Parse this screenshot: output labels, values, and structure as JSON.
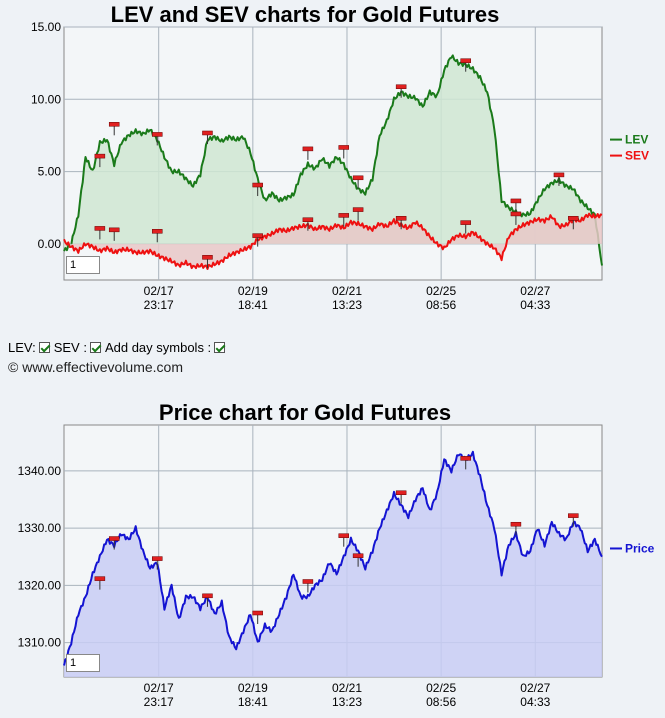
{
  "chart_data": [
    {
      "type": "line",
      "title": "LEV and SEV charts for Gold Futures",
      "ylim": [
        -2.5,
        15
      ],
      "yticks": [
        "15.00",
        "10.00",
        "5.00",
        "0.00"
      ],
      "ytick_values": [
        15,
        10,
        5,
        0
      ],
      "xticks": [
        {
          "date": "02/17",
          "time": "23:17"
        },
        {
          "date": "02/19",
          "time": "18:41"
        },
        {
          "date": "02/21",
          "time": "13:23"
        },
        {
          "date": "02/25",
          "time": "08:56"
        },
        {
          "date": "02/27",
          "time": "04:33"
        }
      ],
      "legend_position": "right",
      "grid": true,
      "series": [
        {
          "name": "LEV",
          "color": "#1a7a1a",
          "fill": "#cfe6d2",
          "points": [
            [
              0,
              -0.5
            ],
            [
              1,
              0
            ],
            [
              2,
              2
            ],
            [
              3,
              6
            ],
            [
              4,
              5
            ],
            [
              5,
              7
            ],
            [
              6,
              7.2
            ],
            [
              7,
              5.5
            ],
            [
              8,
              7
            ],
            [
              9,
              7.5
            ],
            [
              10,
              7.8
            ],
            [
              11,
              7.6
            ],
            [
              12,
              7.9
            ],
            [
              13,
              7.2
            ],
            [
              14,
              6
            ],
            [
              15,
              5
            ],
            [
              16,
              5
            ],
            [
              17,
              4.5
            ],
            [
              18,
              4
            ],
            [
              19,
              4.8
            ],
            [
              20,
              7.2
            ],
            [
              21,
              7.4
            ],
            [
              22,
              7.1
            ],
            [
              23,
              7.4
            ],
            [
              24,
              7.2
            ],
            [
              25,
              7.4
            ],
            [
              26,
              6.3
            ],
            [
              27,
              4.5
            ],
            [
              28,
              3
            ],
            [
              29,
              3.5
            ],
            [
              30,
              3
            ],
            [
              31,
              3.2
            ],
            [
              32,
              3.4
            ],
            [
              33,
              4.8
            ],
            [
              34,
              5.5
            ],
            [
              35,
              5.2
            ],
            [
              36,
              5.9
            ],
            [
              37,
              5.4
            ],
            [
              38,
              6
            ],
            [
              39,
              5.5
            ],
            [
              40,
              4.5
            ],
            [
              41,
              3.8
            ],
            [
              42,
              3.5
            ],
            [
              43,
              4.5
            ],
            [
              44,
              7.5
            ],
            [
              45,
              8.5
            ],
            [
              46,
              10
            ],
            [
              47,
              10.5
            ],
            [
              48,
              10.2
            ],
            [
              49,
              10.1
            ],
            [
              50,
              9.5
            ],
            [
              51,
              10.5
            ],
            [
              52,
              10.2
            ],
            [
              53,
              12
            ],
            [
              54,
              13
            ],
            [
              55,
              12.5
            ],
            [
              56,
              12.4
            ],
            [
              57,
              12.1
            ],
            [
              58,
              11.5
            ],
            [
              59,
              10.5
            ],
            [
              60,
              8
            ],
            [
              61,
              3
            ],
            [
              62,
              2.5
            ],
            [
              63,
              2.2
            ],
            [
              64,
              2
            ],
            [
              65,
              2.1
            ],
            [
              66,
              3
            ],
            [
              67,
              3.8
            ],
            [
              68,
              4.2
            ],
            [
              69,
              4.4
            ],
            [
              70,
              4
            ],
            [
              71,
              3.8
            ],
            [
              72,
              3
            ],
            [
              73,
              2.5
            ],
            [
              74,
              2
            ],
            [
              75,
              -1.5
            ]
          ]
        },
        {
          "name": "SEV",
          "color": "#ee1111",
          "fill": "#e8c8c8",
          "points": [
            [
              0,
              0.2
            ],
            [
              1,
              -0.2
            ],
            [
              2,
              -0.5
            ],
            [
              3,
              0
            ],
            [
              4,
              -0.2
            ],
            [
              5,
              -0.5
            ],
            [
              6,
              -0.3
            ],
            [
              7,
              -0.6
            ],
            [
              8,
              -0.4
            ],
            [
              9,
              -0.4
            ],
            [
              10,
              -0.6
            ],
            [
              11,
              -0.6
            ],
            [
              12,
              -0.5
            ],
            [
              13,
              -0.8
            ],
            [
              14,
              -1
            ],
            [
              15,
              -1.2
            ],
            [
              16,
              -1.5
            ],
            [
              17,
              -1.3
            ],
            [
              18,
              -1.6
            ],
            [
              19,
              -1.5
            ],
            [
              20,
              -1.6
            ],
            [
              21,
              -1.4
            ],
            [
              22,
              -1.2
            ],
            [
              23,
              -0.8
            ],
            [
              24,
              -0.6
            ],
            [
              25,
              -0.4
            ],
            [
              26,
              -0.2
            ],
            [
              27,
              0.3
            ],
            [
              28,
              0.5
            ],
            [
              29,
              0.7
            ],
            [
              30,
              1
            ],
            [
              31,
              0.9
            ],
            [
              32,
              1.1
            ],
            [
              33,
              1.2
            ],
            [
              34,
              1.3
            ],
            [
              35,
              1
            ],
            [
              36,
              1.2
            ],
            [
              37,
              1
            ],
            [
              38,
              1.3
            ],
            [
              39,
              1.1
            ],
            [
              40,
              1.5
            ],
            [
              41,
              1.4
            ],
            [
              42,
              1.2
            ],
            [
              43,
              1
            ],
            [
              44,
              1.4
            ],
            [
              45,
              1.2
            ],
            [
              46,
              1.6
            ],
            [
              47,
              1.3
            ],
            [
              48,
              1.1
            ],
            [
              49,
              1.5
            ],
            [
              50,
              1.1
            ],
            [
              51,
              0.5
            ],
            [
              52,
              0
            ],
            [
              53,
              -0.3
            ],
            [
              54,
              0.3
            ],
            [
              55,
              0.6
            ],
            [
              56,
              0.5
            ],
            [
              57,
              0.8
            ],
            [
              58,
              0.4
            ],
            [
              59,
              0
            ],
            [
              60,
              -0.3
            ],
            [
              61,
              -1
            ],
            [
              62,
              0.5
            ],
            [
              63,
              1
            ],
            [
              64,
              1.3
            ],
            [
              65,
              1.5
            ],
            [
              66,
              1.7
            ],
            [
              67,
              1.6
            ],
            [
              68,
              1.9
            ],
            [
              69,
              1.2
            ],
            [
              70,
              1.3
            ],
            [
              71,
              1.7
            ],
            [
              72,
              1.6
            ],
            [
              73,
              2
            ],
            [
              74,
              1.9
            ],
            [
              75,
              2
            ]
          ]
        }
      ],
      "day_symbols": [
        {
          "x": 5,
          "y": 6
        },
        {
          "x": 7,
          "y": 8.2
        },
        {
          "x": 13,
          "y": 7.5
        },
        {
          "x": 20,
          "y": 7.6
        },
        {
          "x": 27,
          "y": 4
        },
        {
          "x": 34,
          "y": 6.5
        },
        {
          "x": 39,
          "y": 6.6
        },
        {
          "x": 41,
          "y": 4.5
        },
        {
          "x": 47,
          "y": 10.8
        },
        {
          "x": 56,
          "y": 12.6
        },
        {
          "x": 63,
          "y": 2.9
        },
        {
          "x": 69,
          "y": 4.7
        },
        {
          "x": 5,
          "y": 1
        },
        {
          "x": 7,
          "y": 0.9
        },
        {
          "x": 13,
          "y": 0.8
        },
        {
          "x": 20,
          "y": -1
        },
        {
          "x": 27,
          "y": 0.5
        },
        {
          "x": 34,
          "y": 1.6
        },
        {
          "x": 39,
          "y": 1.9
        },
        {
          "x": 41,
          "y": 2.3
        },
        {
          "x": 47,
          "y": 1.7
        },
        {
          "x": 56,
          "y": 1.4
        },
        {
          "x": 63,
          "y": 2
        },
        {
          "x": 71,
          "y": 1.7
        }
      ],
      "zoom_value": "1"
    },
    {
      "type": "area",
      "title": "Price chart for Gold Futures",
      "ylim": [
        1304,
        1348
      ],
      "yticks": [
        "1340.00",
        "1330.00",
        "1320.00",
        "1310.00"
      ],
      "ytick_values": [
        1340,
        1330,
        1320,
        1310
      ],
      "xticks": [
        {
          "date": "02/17",
          "time": "23:17"
        },
        {
          "date": "02/19",
          "time": "18:41"
        },
        {
          "date": "02/21",
          "time": "13:23"
        },
        {
          "date": "02/25",
          "time": "08:56"
        },
        {
          "date": "02/27",
          "time": "04:33"
        }
      ],
      "legend_position": "right",
      "grid": true,
      "series": [
        {
          "name": "Price",
          "color": "#1414d2",
          "fill": "#c8ccf4",
          "points": [
            [
              0,
              1306
            ],
            [
              1,
              1310
            ],
            [
              2,
              1315
            ],
            [
              3,
              1318
            ],
            [
              4,
              1322
            ],
            [
              5,
              1325
            ],
            [
              6,
              1328
            ],
            [
              7,
              1327
            ],
            [
              8,
              1329
            ],
            [
              9,
              1328
            ],
            [
              10,
              1330
            ],
            [
              11,
              1326
            ],
            [
              12,
              1323
            ],
            [
              13,
              1324
            ],
            [
              14,
              1316
            ],
            [
              15,
              1320
            ],
            [
              16,
              1314
            ],
            [
              17,
              1318
            ],
            [
              18,
              1318
            ],
            [
              19,
              1316
            ],
            [
              20,
              1318
            ],
            [
              21,
              1315
            ],
            [
              22,
              1317
            ],
            [
              23,
              1311
            ],
            [
              24,
              1309
            ],
            [
              25,
              1312
            ],
            [
              26,
              1315
            ],
            [
              27,
              1310
            ],
            [
              28,
              1313
            ],
            [
              29,
              1312
            ],
            [
              30,
              1315
            ],
            [
              31,
              1318
            ],
            [
              32,
              1322
            ],
            [
              33,
              1318
            ],
            [
              34,
              1318
            ],
            [
              35,
              1320
            ],
            [
              36,
              1321
            ],
            [
              37,
              1324
            ],
            [
              38,
              1322
            ],
            [
              39,
              1325
            ],
            [
              40,
              1328
            ],
            [
              41,
              1326
            ],
            [
              42,
              1323
            ],
            [
              43,
              1326
            ],
            [
              44,
              1330
            ],
            [
              45,
              1333
            ],
            [
              46,
              1336
            ],
            [
              47,
              1334
            ],
            [
              48,
              1332
            ],
            [
              49,
              1335
            ],
            [
              50,
              1337
            ],
            [
              51,
              1333
            ],
            [
              52,
              1336
            ],
            [
              53,
              1342
            ],
            [
              54,
              1340
            ],
            [
              55,
              1343
            ],
            [
              56,
              1342
            ],
            [
              57,
              1343
            ],
            [
              58,
              1339
            ],
            [
              59,
              1334
            ],
            [
              60,
              1330
            ],
            [
              61,
              1322
            ],
            [
              62,
              1327
            ],
            [
              63,
              1329
            ],
            [
              64,
              1325
            ],
            [
              65,
              1326
            ],
            [
              66,
              1330
            ],
            [
              67,
              1327
            ],
            [
              68,
              1331
            ],
            [
              69,
              1329
            ],
            [
              70,
              1328
            ],
            [
              71,
              1331
            ],
            [
              72,
              1330
            ],
            [
              73,
              1326
            ],
            [
              74,
              1328
            ],
            [
              75,
              1325
            ]
          ]
        }
      ],
      "day_symbols": [
        {
          "x": 5,
          "y": 1321
        },
        {
          "x": 7,
          "y": 1328
        },
        {
          "x": 13,
          "y": 1324.5
        },
        {
          "x": 20,
          "y": 1318
        },
        {
          "x": 27,
          "y": 1315
        },
        {
          "x": 34,
          "y": 1320.5
        },
        {
          "x": 39,
          "y": 1328.5
        },
        {
          "x": 41,
          "y": 1325
        },
        {
          "x": 47,
          "y": 1336
        },
        {
          "x": 56,
          "y": 1342
        },
        {
          "x": 63,
          "y": 1330.5
        },
        {
          "x": 71,
          "y": 1332
        }
      ],
      "zoom_value": "1"
    }
  ],
  "controls": {
    "lev_label": "LEV:",
    "sev_label": "SEV :",
    "day_symbols_label": "Add day symbols :",
    "copyright": "© www.effectivevolume.com"
  }
}
